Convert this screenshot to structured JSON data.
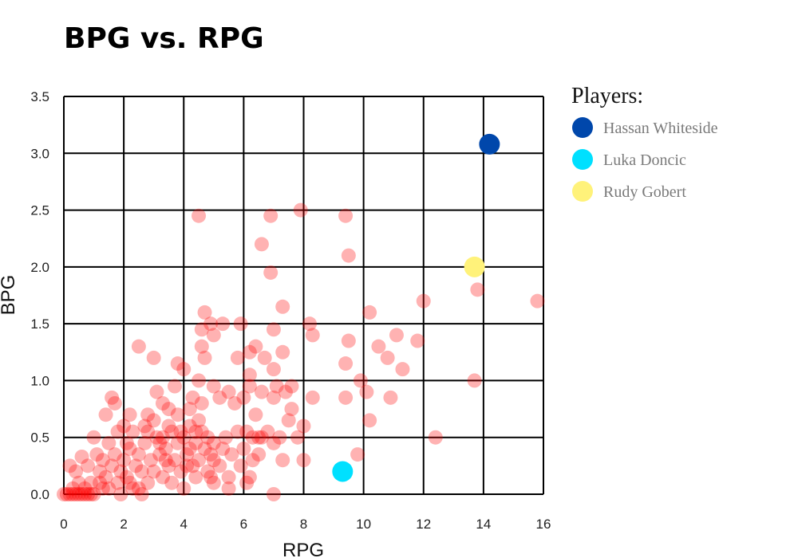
{
  "chart_data": {
    "type": "scatter",
    "title": "BPG vs. RPG",
    "xlabel": "RPG",
    "ylabel": "BPG",
    "xlim": [
      0,
      16
    ],
    "ylim": [
      0,
      3.5
    ],
    "xticks": [
      "0",
      "2",
      "4",
      "6",
      "8",
      "10",
      "12",
      "14",
      "16"
    ],
    "yticks": [
      "0.0",
      "0.5",
      "1.0",
      "1.5",
      "2.0",
      "2.5",
      "3.0",
      "3.5"
    ],
    "grid": true,
    "legend": {
      "title": "Players:",
      "placement": "right",
      "entries": [
        {
          "name": "Hassan Whiteside",
          "color": "#0047AB"
        },
        {
          "name": "Luka Doncic",
          "color": "#00E0FF"
        },
        {
          "name": "Rudy Gobert",
          "color": "#FFF27A"
        }
      ]
    },
    "series": [
      {
        "role": "all-players",
        "color": "#FF0000",
        "opacity": 0.3,
        "points": [
          [
            0,
            0
          ],
          [
            0.1,
            0
          ],
          [
            0.2,
            0
          ],
          [
            0.3,
            0
          ],
          [
            0.4,
            0
          ],
          [
            0.5,
            0
          ],
          [
            0.6,
            0
          ],
          [
            0.7,
            0
          ],
          [
            0.8,
            0
          ],
          [
            0.9,
            0
          ],
          [
            1.0,
            0
          ],
          [
            0.3,
            0.05
          ],
          [
            0.5,
            0.1
          ],
          [
            0.7,
            0.05
          ],
          [
            0.4,
            0.2
          ],
          [
            0.2,
            0.25
          ],
          [
            0.6,
            0.33
          ],
          [
            0.9,
            0.1
          ],
          [
            1.0,
            0.5
          ],
          [
            1.2,
            0.1
          ],
          [
            1.2,
            0.2
          ],
          [
            1.3,
            0.3
          ],
          [
            1.4,
            0.15
          ],
          [
            1.5,
            0.05
          ],
          [
            1.6,
            0.25
          ],
          [
            1.7,
            0.35
          ],
          [
            1.8,
            0.1
          ],
          [
            1.9,
            0.2
          ],
          [
            2.0,
            0.3
          ],
          [
            2.1,
            0.15
          ],
          [
            2.2,
            0.4
          ],
          [
            2.3,
            0.05
          ],
          [
            2.4,
            0.25
          ],
          [
            2.5,
            0.35
          ],
          [
            2.6,
            0.2
          ],
          [
            2.7,
            0.45
          ],
          [
            2.8,
            0.1
          ],
          [
            2.9,
            0.3
          ],
          [
            3.0,
            0.2
          ],
          [
            3.1,
            0.5
          ],
          [
            3.2,
            0.35
          ],
          [
            3.3,
            0.15
          ],
          [
            3.4,
            0.4
          ],
          [
            3.5,
            0.25
          ],
          [
            3.6,
            0.55
          ],
          [
            3.7,
            0.3
          ],
          [
            3.8,
            0.45
          ],
          [
            3.9,
            0.2
          ],
          [
            4.0,
            0.5
          ],
          [
            4.1,
            0.35
          ],
          [
            4.2,
            0.6
          ],
          [
            4.3,
            0.25
          ],
          [
            4.4,
            0.45
          ],
          [
            4.5,
            0.3
          ],
          [
            4.6,
            0.55
          ],
          [
            4.7,
            0.4
          ],
          [
            4.8,
            0.2
          ],
          [
            4.9,
            0.35
          ],
          [
            5.0,
            0.45
          ],
          [
            1.5,
            0.45
          ],
          [
            1.8,
            0.55
          ],
          [
            2.0,
            0.6
          ],
          [
            2.2,
            0.1
          ],
          [
            2.5,
            0.05
          ],
          [
            2.8,
            0.55
          ],
          [
            3.0,
            0.65
          ],
          [
            3.3,
            0.5
          ],
          [
            3.5,
            0.6
          ],
          [
            3.8,
            0.7
          ],
          [
            4.0,
            0.05
          ],
          [
            4.2,
            0.4
          ],
          [
            4.5,
            0.65
          ],
          [
            4.8,
            0.5
          ],
          [
            5.0,
            0.3
          ],
          [
            5.2,
            0.25
          ],
          [
            5.4,
            0.5
          ],
          [
            5.5,
            0.15
          ],
          [
            5.6,
            0.35
          ],
          [
            5.8,
            0.55
          ],
          [
            6.0,
            0.4
          ],
          [
            6.2,
            0.15
          ],
          [
            6.3,
            0.3
          ],
          [
            6.5,
            0.5
          ],
          [
            1.4,
            0.7
          ],
          [
            1.6,
            0.85
          ],
          [
            1.7,
            0.8
          ],
          [
            2.2,
            0.7
          ],
          [
            2.5,
            1.3
          ],
          [
            2.8,
            0.7
          ],
          [
            3.0,
            1.2
          ],
          [
            3.1,
            0.9
          ],
          [
            3.3,
            0.8
          ],
          [
            3.5,
            0.75
          ],
          [
            3.7,
            0.95
          ],
          [
            3.8,
            1.15
          ],
          [
            4.0,
            1.1
          ],
          [
            4.2,
            0.75
          ],
          [
            4.3,
            0.85
          ],
          [
            4.5,
            1.0
          ],
          [
            4.6,
            0.8
          ],
          [
            4.7,
            1.6
          ],
          [
            4.6,
            1.45
          ],
          [
            4.6,
            1.3
          ],
          [
            4.7,
            1.2
          ],
          [
            4.9,
            1.5
          ],
          [
            5.0,
            1.4
          ],
          [
            5.3,
            1.5
          ],
          [
            5.0,
            0.95
          ],
          [
            5.2,
            0.85
          ],
          [
            5.5,
            0.9
          ],
          [
            5.7,
            0.8
          ],
          [
            5.9,
            1.5
          ],
          [
            5.8,
            1.2
          ],
          [
            6.0,
            0.85
          ],
          [
            6.2,
            0.95
          ],
          [
            6.2,
            1.25
          ],
          [
            6.2,
            1.05
          ],
          [
            6.4,
            1.3
          ],
          [
            6.4,
            0.7
          ],
          [
            6.6,
            0.9
          ],
          [
            6.7,
            1.2
          ],
          [
            6.8,
            0.55
          ],
          [
            6.9,
            1.95
          ],
          [
            6.6,
            2.2
          ],
          [
            6.9,
            2.45
          ],
          [
            7.0,
            1.45
          ],
          [
            7.0,
            1.1
          ],
          [
            7.1,
            0.95
          ],
          [
            7.2,
            0.5
          ],
          [
            7.3,
            1.25
          ],
          [
            7.3,
            0.3
          ],
          [
            7.3,
            1.65
          ],
          [
            7.4,
            0.9
          ],
          [
            7.5,
            0.65
          ],
          [
            7.6,
            0.75
          ],
          [
            7.8,
            0.5
          ],
          [
            7.9,
            2.5
          ],
          [
            8.0,
            0.3
          ],
          [
            8.2,
            1.5
          ],
          [
            8.3,
            1.4
          ],
          [
            8.3,
            0.85
          ],
          [
            4.5,
            2.45
          ],
          [
            7.0,
            0.0
          ],
          [
            6.1,
            0.1
          ],
          [
            6.3,
            0.5
          ],
          [
            6.5,
            0.35
          ],
          [
            7.0,
            0.45
          ],
          [
            8.0,
            0.6
          ],
          [
            9.4,
            2.45
          ],
          [
            9.5,
            2.1
          ],
          [
            9.5,
            1.35
          ],
          [
            9.4,
            1.15
          ],
          [
            9.4,
            0.85
          ],
          [
            9.8,
            0.35
          ],
          [
            9.9,
            1.0
          ],
          [
            10.1,
            0.9
          ],
          [
            10.2,
            1.6
          ],
          [
            10.2,
            0.65
          ],
          [
            10.5,
            1.3
          ],
          [
            10.8,
            1.2
          ],
          [
            10.9,
            0.85
          ],
          [
            11.1,
            1.4
          ],
          [
            11.3,
            1.1
          ],
          [
            11.8,
            1.35
          ],
          [
            12.0,
            1.7
          ],
          [
            12.4,
            0.5
          ],
          [
            13.7,
            1.0
          ],
          [
            13.8,
            1.8
          ],
          [
            15.8,
            1.7
          ],
          [
            5.0,
            0.1
          ],
          [
            5.5,
            0.05
          ],
          [
            4.4,
            0.15
          ],
          [
            3.6,
            0.1
          ],
          [
            2.6,
            0.0
          ],
          [
            1.9,
            0.0
          ],
          [
            1.3,
            0.05
          ],
          [
            0.8,
            0.25
          ],
          [
            1.1,
            0.35
          ],
          [
            2.3,
            0.55
          ],
          [
            2.7,
            0.6
          ],
          [
            3.2,
            0.45
          ],
          [
            3.9,
            0.55
          ],
          [
            4.1,
            0.25
          ],
          [
            4.9,
            0.15
          ],
          [
            5.3,
            0.4
          ],
          [
            5.9,
            0.25
          ],
          [
            6.1,
            0.55
          ],
          [
            6.6,
            0.5
          ],
          [
            7.0,
            0.85
          ],
          [
            7.6,
            0.95
          ],
          [
            4.4,
            0.55
          ],
          [
            3.4,
            0.3
          ],
          [
            2.1,
            0.45
          ]
        ]
      },
      {
        "role": "highlight",
        "name": "Hassan Whiteside",
        "color": "#0047AB",
        "points": [
          [
            14.2,
            3.08
          ]
        ]
      },
      {
        "role": "highlight",
        "name": "Luka Doncic",
        "color": "#00E0FF",
        "points": [
          [
            9.3,
            0.2
          ]
        ]
      },
      {
        "role": "highlight",
        "name": "Rudy Gobert",
        "color": "#FFF27A",
        "points": [
          [
            13.7,
            2.0
          ]
        ]
      }
    ]
  }
}
